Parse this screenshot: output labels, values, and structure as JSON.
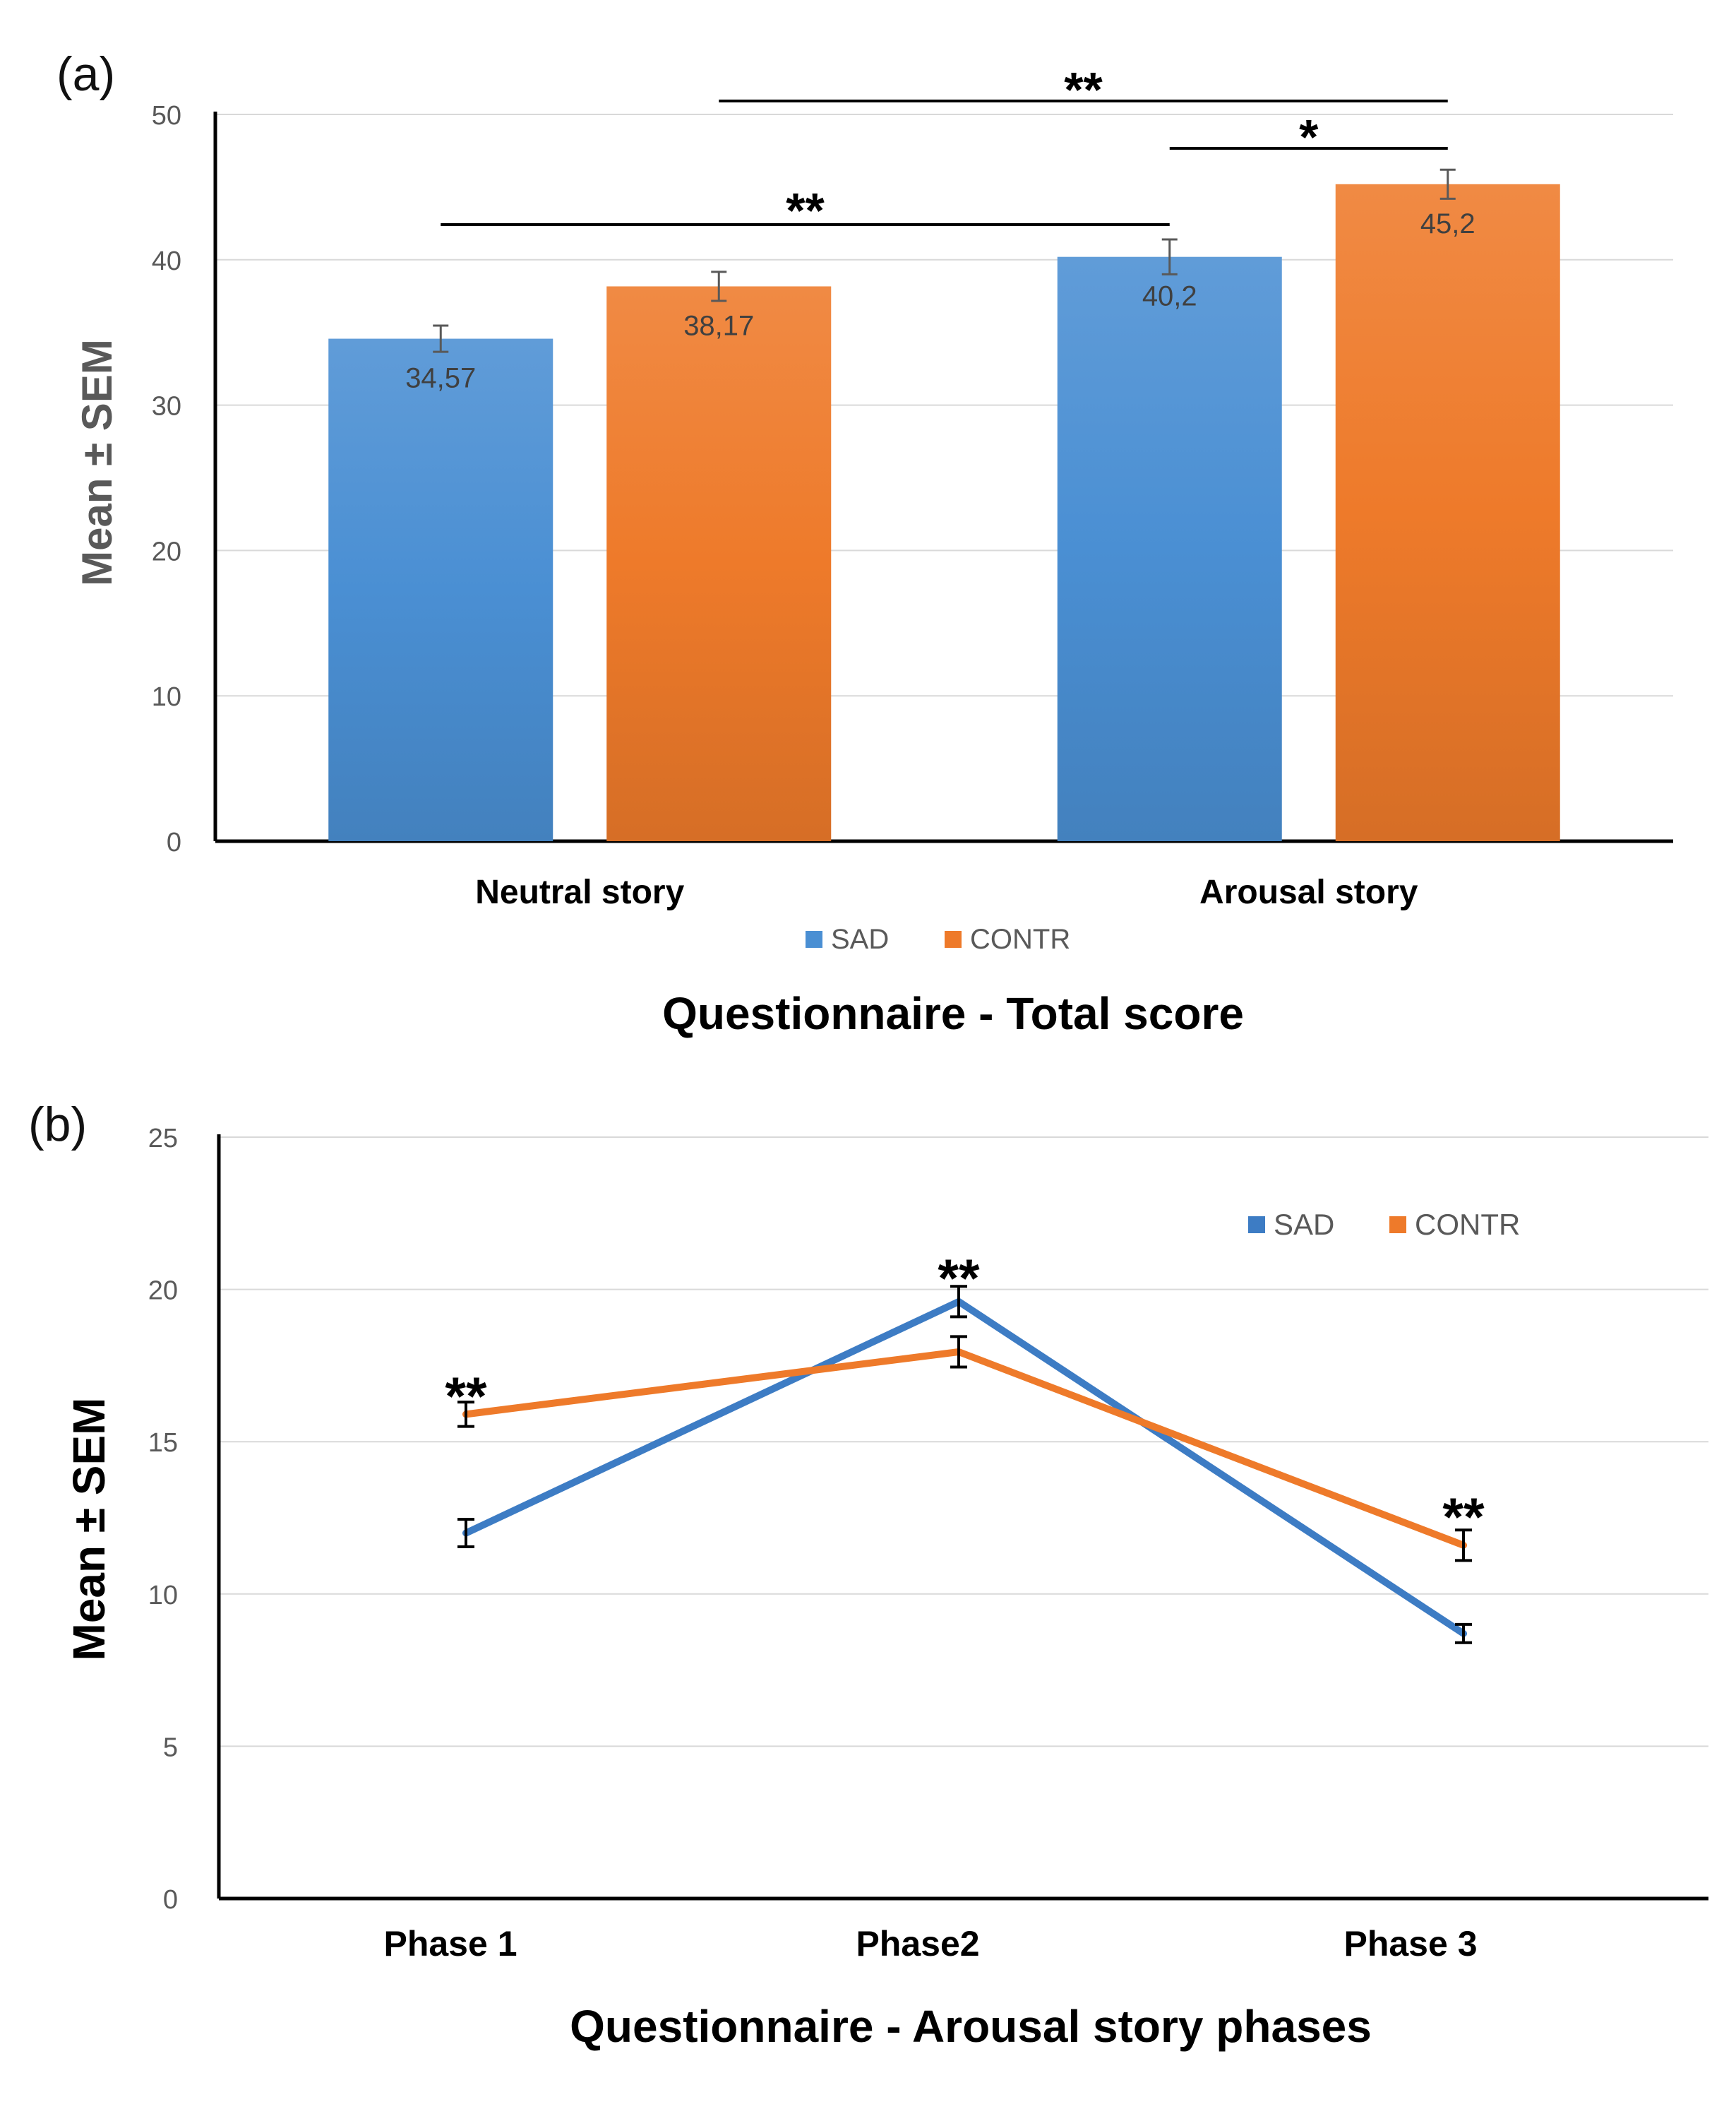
{
  "chart_data": [
    {
      "panel": "(a)",
      "type": "bar",
      "title": "Questionnaire - Total score",
      "xlabel": "",
      "ylabel": "Mean ± SEM",
      "ylim": [
        0,
        50
      ],
      "yticks": [
        "0",
        "10",
        "20",
        "30",
        "40",
        "50"
      ],
      "grid": true,
      "legend_position": "bottom-center",
      "categories": [
        "Neutral story",
        "Arousal story"
      ],
      "series": [
        {
          "name": "SAD",
          "color": "#4a8fd3",
          "values": [
            34.57,
            40.2
          ],
          "sem": [
            0.9,
            1.2
          ],
          "labels": [
            "34,57",
            "40,2"
          ]
        },
        {
          "name": "CONTR",
          "color": "#ee7a2a",
          "values": [
            38.17,
            45.2
          ],
          "sem": [
            1.0,
            1.0
          ],
          "labels": [
            "38,17",
            "45,2"
          ]
        }
      ],
      "significance": [
        {
          "from": "Neutral story SAD",
          "to": "Arousal story SAD",
          "label": "**"
        },
        {
          "from": "Neutral story CONTR",
          "to": "Arousal story CONTR",
          "label": "**"
        },
        {
          "from": "Arousal story SAD",
          "to": "Arousal story CONTR",
          "label": "*"
        }
      ]
    },
    {
      "panel": "(b)",
      "type": "line",
      "title": "Questionnaire - Arousal story phases",
      "xlabel": "",
      "ylabel": "Mean ± SEM",
      "ylim": [
        0,
        25
      ],
      "yticks": [
        "0",
        "5",
        "10",
        "15",
        "20",
        "25"
      ],
      "grid": true,
      "legend_position": "top-right",
      "categories": [
        "Phase 1",
        "Phase2",
        "Phase 3"
      ],
      "series": [
        {
          "name": "SAD",
          "color": "#3d7cc4",
          "values": [
            12.0,
            19.6,
            8.7
          ],
          "sem": [
            0.45,
            0.5,
            0.3
          ]
        },
        {
          "name": "CONTR",
          "color": "#ee7a2a",
          "values": [
            15.9,
            17.95,
            11.6
          ],
          "sem": [
            0.4,
            0.5,
            0.5
          ]
        }
      ],
      "significance_labels": [
        "**",
        "**",
        "**"
      ]
    }
  ]
}
